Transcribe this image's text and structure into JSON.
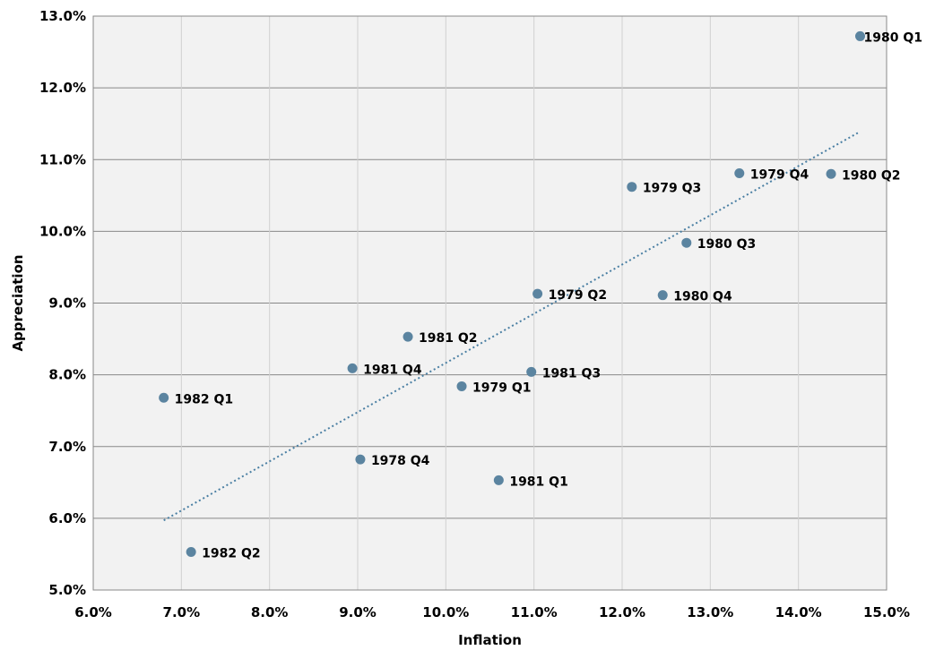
{
  "chart_data": {
    "type": "scatter",
    "xlabel": "Inflation",
    "ylabel": "Appreciation",
    "xlim": [
      6.0,
      15.0
    ],
    "ylim": [
      5.0,
      13.0
    ],
    "x_ticks": [
      "6.0%",
      "7.0%",
      "8.0%",
      "9.0%",
      "10.0%",
      "11.0%",
      "12.0%",
      "13.0%",
      "14.0%",
      "15.0%"
    ],
    "y_ticks": [
      "5.0%",
      "6.0%",
      "7.0%",
      "8.0%",
      "9.0%",
      "10.0%",
      "11.0%",
      "12.0%",
      "13.0%"
    ],
    "grid": "both",
    "points": [
      {
        "label": "1980 Q1",
        "x": 14.7,
        "y": 12.72
      },
      {
        "label": "1979 Q4",
        "x": 13.33,
        "y": 10.81
      },
      {
        "label": "1980 Q2",
        "x": 14.37,
        "y": 10.8
      },
      {
        "label": "1979 Q3",
        "x": 12.11,
        "y": 10.62
      },
      {
        "label": "1980 Q3",
        "x": 12.73,
        "y": 9.84
      },
      {
        "label": "1979 Q2",
        "x": 11.04,
        "y": 9.13
      },
      {
        "label": "1980 Q4",
        "x": 12.46,
        "y": 9.11
      },
      {
        "label": "1981 Q2",
        "x": 9.57,
        "y": 8.53
      },
      {
        "label": "1981 Q4",
        "x": 8.94,
        "y": 8.09
      },
      {
        "label": "1981 Q3",
        "x": 10.97,
        "y": 8.04
      },
      {
        "label": "1979 Q1",
        "x": 10.18,
        "y": 7.84
      },
      {
        "label": "1982 Q1",
        "x": 6.8,
        "y": 7.68
      },
      {
        "label": "1978 Q4",
        "x": 9.03,
        "y": 6.82
      },
      {
        "label": "1981 Q1",
        "x": 10.6,
        "y": 6.53
      },
      {
        "label": "1982 Q2",
        "x": 7.11,
        "y": 5.53
      }
    ],
    "trendline": {
      "x": [
        6.8,
        14.7
      ],
      "y": [
        5.97,
        11.39
      ],
      "style": "dotted"
    },
    "colors": {
      "marker": "#5b84a0",
      "trendline": "#4a7fa3",
      "plot_bg": "#f2f2f2",
      "grid": "#888888"
    }
  }
}
